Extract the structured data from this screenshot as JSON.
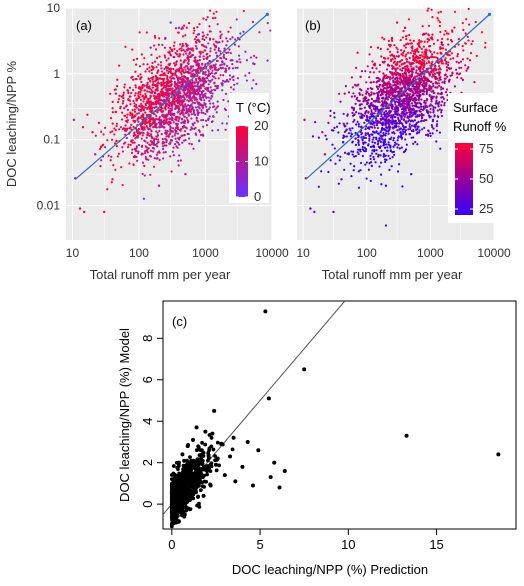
{
  "chart_data": [
    {
      "type": "scatter",
      "panel_label": "(a)",
      "ylabel": "DOC leaching/NPP %",
      "xlabel": "Total runoff mm per year",
      "xscale": "log",
      "yscale": "log",
      "xlim": [
        8,
        10000
      ],
      "ylim": [
        0.003,
        10
      ],
      "x_ticks": [
        "10",
        "100",
        "1000",
        "10000"
      ],
      "y_ticks": [
        "10",
        "1",
        "0.1",
        "0.01"
      ],
      "grid": true,
      "legend": {
        "title": "T (°C)",
        "ticks": [
          "20",
          "10",
          "0"
        ],
        "range": [
          0,
          20
        ],
        "low_color": "#6633ff",
        "high_color": "#ff0033",
        "placement": "right"
      },
      "fit_line": {
        "x": [
          11,
          8500
        ],
        "y": [
          0.025,
          8
        ],
        "color": "#2f6fc0"
      },
      "point_cloud": {
        "x_center": 350,
        "y_center": 0.45,
        "n_points": 2000
      },
      "points": [
        [
          10.5,
          0.2,
          12
        ],
        [
          11,
          0.026,
          14
        ],
        [
          13,
          0.009,
          17
        ],
        [
          15,
          0.008,
          16
        ],
        [
          20,
          0.13,
          13
        ],
        [
          22,
          0.06,
          11
        ],
        [
          25,
          0.18,
          15
        ],
        [
          30,
          0.008,
          18
        ],
        [
          40,
          0.025,
          14
        ],
        [
          45,
          0.5,
          12
        ],
        [
          60,
          0.3,
          9
        ],
        [
          80,
          0.9,
          8
        ],
        [
          120,
          0.04,
          16
        ],
        [
          150,
          2.5,
          6
        ],
        [
          200,
          0.02,
          13
        ],
        [
          250,
          3.5,
          4
        ],
        [
          300,
          6,
          3
        ],
        [
          400,
          5,
          2
        ],
        [
          500,
          0.03,
          12
        ],
        [
          800,
          4,
          4
        ],
        [
          1100,
          0.2,
          10
        ],
        [
          1500,
          3,
          9
        ],
        [
          2000,
          1.2,
          11
        ],
        [
          3000,
          0.05,
          10
        ]
      ]
    },
    {
      "type": "scatter",
      "panel_label": "(b)",
      "xlabel": "Total runoff mm per year",
      "xscale": "log",
      "yscale": "log",
      "xlim": [
        8,
        10000
      ],
      "ylim": [
        0.003,
        10
      ],
      "x_ticks": [
        "10",
        "100",
        "1000",
        "10000"
      ],
      "grid": true,
      "legend": {
        "title": "Surface Runoff %",
        "title_lines": [
          "Surface",
          "Runoff %"
        ],
        "ticks": [
          "75",
          "50",
          "25"
        ],
        "range": [
          20,
          80
        ],
        "low_color": "#3300ff",
        "high_color": "#ff0033",
        "placement": "right"
      },
      "fit_line": {
        "x": [
          11,
          8500
        ],
        "y": [
          0.025,
          8
        ],
        "color": "#2f6fc0"
      },
      "point_cloud": {
        "x_center": 350,
        "y_center": 0.45,
        "n_points": 2000
      },
      "points": [
        [
          10.5,
          0.2,
          60
        ],
        [
          11,
          0.026,
          65
        ],
        [
          13,
          0.009,
          30
        ],
        [
          15,
          0.008,
          35
        ],
        [
          20,
          0.13,
          70
        ],
        [
          22,
          0.06,
          55
        ],
        [
          25,
          0.18,
          60
        ],
        [
          30,
          0.008,
          30
        ],
        [
          40,
          0.025,
          40
        ],
        [
          45,
          0.5,
          65
        ],
        [
          60,
          0.3,
          55
        ],
        [
          80,
          0.9,
          70
        ],
        [
          120,
          0.04,
          30
        ],
        [
          150,
          2.5,
          75
        ],
        [
          200,
          0.02,
          28
        ],
        [
          250,
          3.5,
          70
        ],
        [
          300,
          6,
          75
        ],
        [
          400,
          5,
          60
        ],
        [
          500,
          0.03,
          25
        ],
        [
          800,
          4,
          55
        ],
        [
          1100,
          0.2,
          35
        ],
        [
          1500,
          3,
          50
        ],
        [
          2000,
          1.2,
          40
        ],
        [
          3000,
          0.05,
          30
        ]
      ]
    },
    {
      "type": "scatter",
      "panel_label": "(c)",
      "xlabel": "DOC leaching/NPP (%) Prediction",
      "ylabel": "DOC leaching/NPP (%) Model",
      "xlim": [
        -0.5,
        19.5
      ],
      "ylim": [
        -1.2,
        9.8
      ],
      "x_ticks": [
        "0",
        "5",
        "10",
        "15"
      ],
      "y_ticks": [
        "0",
        "2",
        "4",
        "6",
        "8"
      ],
      "grid": false,
      "identity_line": true,
      "points": [
        [
          5.3,
          9.3
        ],
        [
          7.5,
          6.5
        ],
        [
          5.5,
          5.1
        ],
        [
          13.3,
          3.3
        ],
        [
          18.5,
          2.4
        ],
        [
          2.4,
          4.5
        ],
        [
          1.4,
          3.7
        ],
        [
          1.9,
          3.5
        ],
        [
          2.3,
          3.4
        ],
        [
          3.5,
          3.2
        ],
        [
          4.3,
          3.0
        ],
        [
          4.9,
          2.6
        ],
        [
          5.8,
          2.0
        ],
        [
          6.4,
          1.6
        ],
        [
          5.6,
          1.3
        ],
        [
          6.1,
          0.8
        ],
        [
          3.3,
          2.3
        ],
        [
          4.0,
          1.8
        ],
        [
          2.8,
          2.9
        ],
        [
          3.0,
          1.4
        ],
        [
          0.1,
          -0.8
        ],
        [
          0.2,
          -0.4
        ],
        [
          0.3,
          -0.2
        ],
        [
          0.5,
          0.3
        ],
        [
          0.7,
          0.5
        ],
        [
          1.0,
          0.7
        ],
        [
          1.5,
          1.2
        ],
        [
          2.0,
          1.6
        ],
        [
          2.5,
          1.9
        ],
        [
          0.4,
          2.0
        ],
        [
          0.6,
          2.4
        ],
        [
          0.9,
          2.8
        ],
        [
          1.2,
          3.1
        ],
        [
          1.7,
          2.6
        ],
        [
          2.6,
          2.2
        ],
        [
          3.6,
          1.1
        ],
        [
          4.6,
          0.9
        ],
        [
          1.8,
          0.4
        ],
        [
          2.2,
          0.9
        ],
        [
          1.1,
          1.5
        ]
      ],
      "point_cloud": {
        "x_center": 1.3,
        "y_center": 1.0,
        "n_points": 800
      }
    }
  ]
}
